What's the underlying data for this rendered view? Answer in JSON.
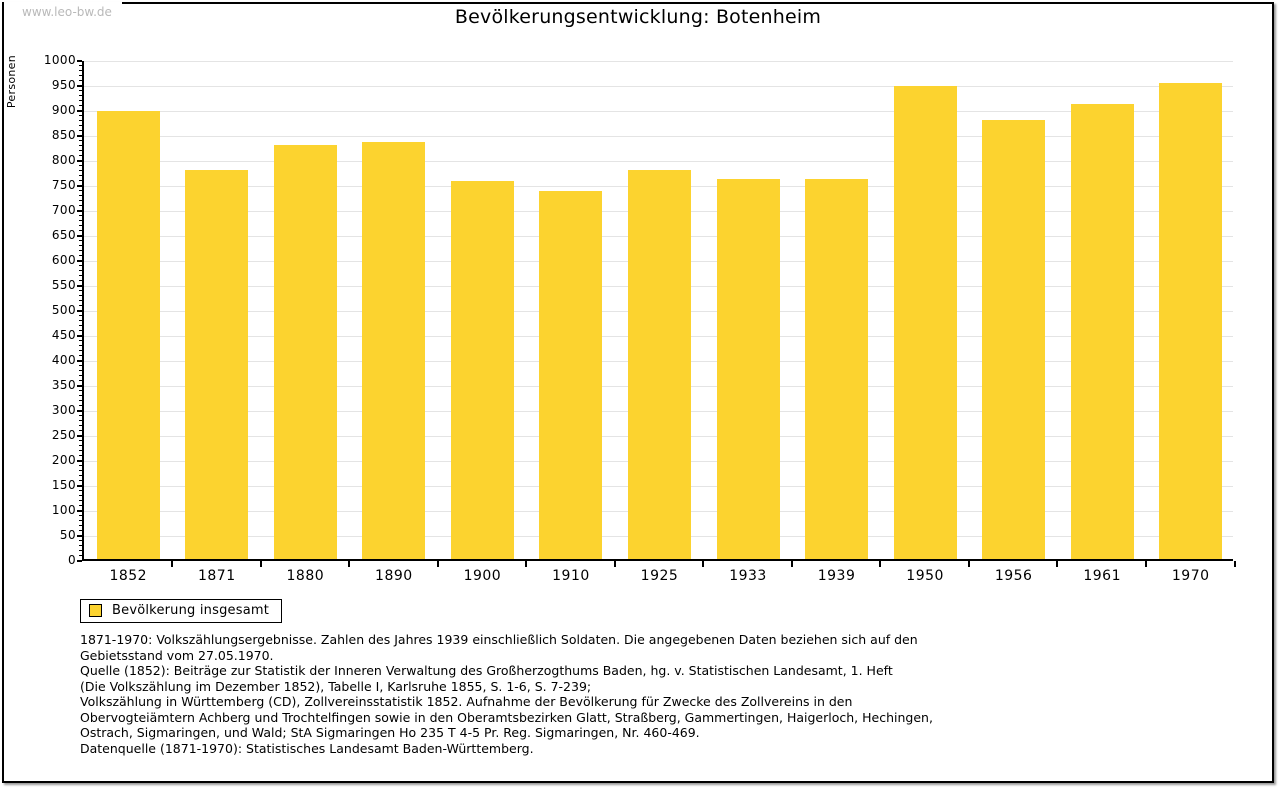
{
  "watermark": "www.leo-bw.de",
  "title": "Bevölkerungsentwicklung: Botenheim",
  "chart_data": {
    "type": "bar",
    "title": "Bevölkerungsentwicklung: Botenheim",
    "xlabel": "",
    "ylabel": "Personen",
    "categories": [
      "1852",
      "1871",
      "1880",
      "1890",
      "1900",
      "1910",
      "1925",
      "1933",
      "1939",
      "1950",
      "1956",
      "1961",
      "1970"
    ],
    "values": [
      897,
      779,
      829,
      834,
      757,
      736,
      779,
      761,
      761,
      946,
      878,
      910,
      953
    ],
    "ylim": [
      0,
      1000
    ],
    "ytick_step": 50,
    "minor_tick_step": 10,
    "grid": true,
    "legend_entries": [
      "Bevölkerung insgesamt"
    ],
    "legend_position": "bottom-left",
    "bar_color": "#fcd32f"
  },
  "legend": {
    "label": "Bevölkerung insgesamt"
  },
  "footer": {
    "notes": "1871-1970: Volkszählungsergebnisse. Zahlen des Jahres 1939 einschließlich Soldaten. Die angegebenen Daten beziehen sich auf den\nGebietsstand vom 27.05.1970.\nQuelle (1852): Beiträge zur Statistik der Inneren Verwaltung des Großherzogthums Baden, hg. v. Statistischen Landesamt, 1. Heft\n(Die Volkszählung im Dezember 1852), Tabelle I, Karlsruhe 1855, S. 1-6, S. 7-239;\nVolkszählung in Württemberg (CD), Zollvereinsstatistik 1852. Aufnahme der Bevölkerung für Zwecke des Zollvereins in den\nObervogteiämtern Achberg und Trochtelfingen sowie in den Oberamtsbezirken Glatt, Straßberg, Gammertingen, Haigerloch, Hechingen,\nOstrach, Sigmaringen, und Wald; StA Sigmaringen Ho 235 T 4-5 Pr. Reg. Sigmaringen, Nr. 460-469.",
    "datasource": "Datenquelle (1871-1970): Statistisches Landesamt Baden-Württemberg."
  },
  "colors": {
    "bar": "#fcd32f",
    "grid": "#e4e4e4",
    "axis": "#000000",
    "watermark_text": "#b9b9b9"
  }
}
